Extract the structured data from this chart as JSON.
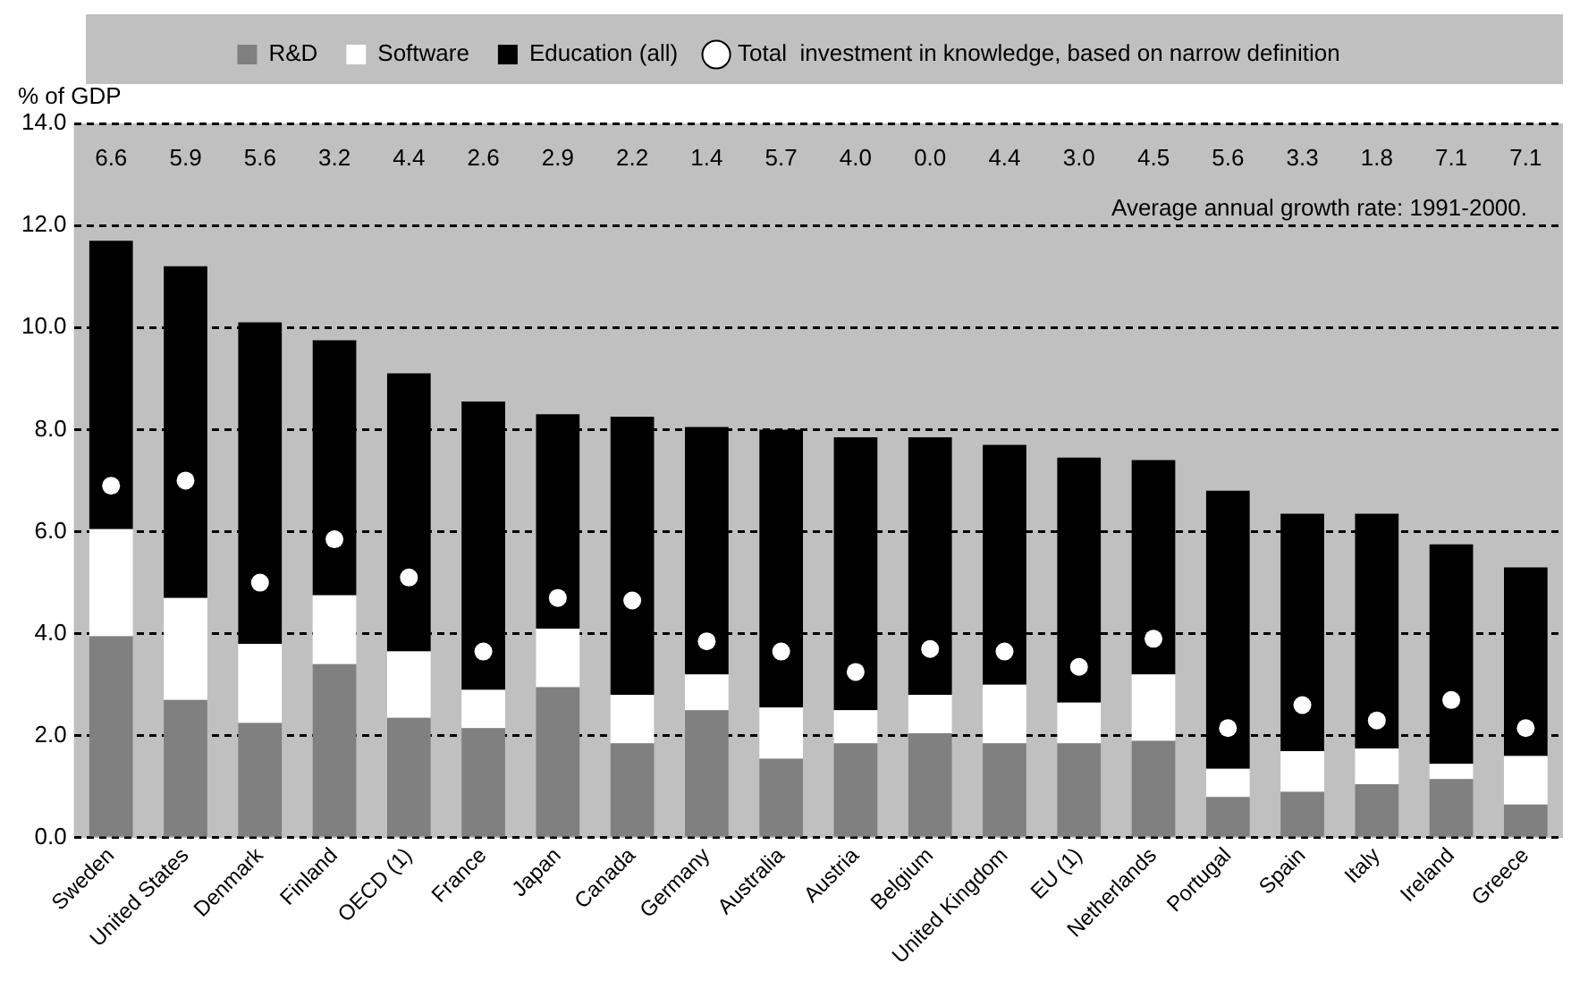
{
  "chart_data": {
    "type": "bar",
    "stacked": true,
    "ylabel": "% of GDP",
    "categories": [
      "Sweden",
      "United States",
      "Denmark",
      "Finland",
      "OECD (1)",
      "France",
      "Japan",
      "Canada",
      "Germany",
      "Australia",
      "Austria",
      "Belgium",
      "United Kingdom",
      "EU (1)",
      "Netherlands",
      "Portugal",
      "Spain",
      "Italy",
      "Ireland",
      "Greece"
    ],
    "series": [
      {
        "name": "R&D",
        "color": "#808080",
        "values": [
          3.95,
          2.7,
          2.25,
          3.4,
          2.35,
          2.15,
          2.95,
          1.85,
          2.5,
          1.55,
          1.85,
          2.05,
          1.85,
          1.85,
          1.9,
          0.8,
          0.9,
          1.05,
          1.15,
          0.65
        ]
      },
      {
        "name": "Software",
        "color": "#ffffff",
        "values": [
          2.1,
          2.0,
          1.55,
          1.35,
          1.3,
          0.75,
          1.15,
          0.95,
          0.7,
          1.0,
          0.65,
          0.75,
          1.15,
          0.8,
          1.3,
          0.55,
          0.8,
          0.7,
          0.3,
          0.95
        ]
      },
      {
        "name": "Education (all)",
        "color": "#000000",
        "values": [
          5.65,
          6.5,
          6.3,
          5.0,
          5.45,
          5.65,
          4.2,
          5.45,
          4.85,
          5.45,
          5.35,
          5.05,
          4.7,
          4.8,
          4.2,
          5.45,
          4.65,
          4.6,
          4.3,
          3.7
        ]
      },
      {
        "name": "Total  investment in knowledge, based on narrow definition",
        "type": "scatter",
        "color": "#ffffff",
        "x": [
          "Sweden",
          "United States",
          "Denmark",
          "Finland",
          "OECD (1)",
          "France",
          "Japan",
          "Canada",
          "Germany",
          "Australia",
          "Austria",
          "Belgium",
          "United Kingdom",
          "EU (1)",
          "Netherlands",
          "Portugal",
          "Spain",
          "Italy",
          "Ireland",
          "Greece"
        ],
        "values": [
          6.9,
          7.0,
          5.0,
          5.85,
          5.1,
          3.65,
          4.7,
          4.65,
          3.85,
          3.65,
          3.25,
          3.7,
          3.65,
          3.35,
          3.9,
          2.15,
          2.6,
          2.3,
          2.7,
          2.15
        ]
      }
    ],
    "ylim": [
      0,
      14
    ],
    "yticks": [
      {
        "value": 0,
        "label": "0.0"
      },
      {
        "value": 2,
        "label": "2.0"
      },
      {
        "value": 4,
        "label": "4.0"
      },
      {
        "value": 6,
        "label": "6.0"
      },
      {
        "value": 8,
        "label": "8.0"
      },
      {
        "value": 10,
        "label": "10.0"
      },
      {
        "value": 12,
        "label": "12.0"
      },
      {
        "value": 14,
        "label": "14.0"
      }
    ],
    "grid": "y",
    "legend": "top",
    "marker": "circle",
    "annotations": [
      "6.6",
      "5.9",
      "5.6",
      "3.2",
      "4.4",
      "2.6",
      "2.9",
      "2.2",
      "1.4",
      "5.7",
      "4.0",
      "0.0",
      "4.4",
      "3.0",
      "4.5",
      "5.6",
      "3.3",
      "1.8",
      "7.1",
      "7.1",
      "Average annual growth rate: 1991-2000."
    ]
  }
}
